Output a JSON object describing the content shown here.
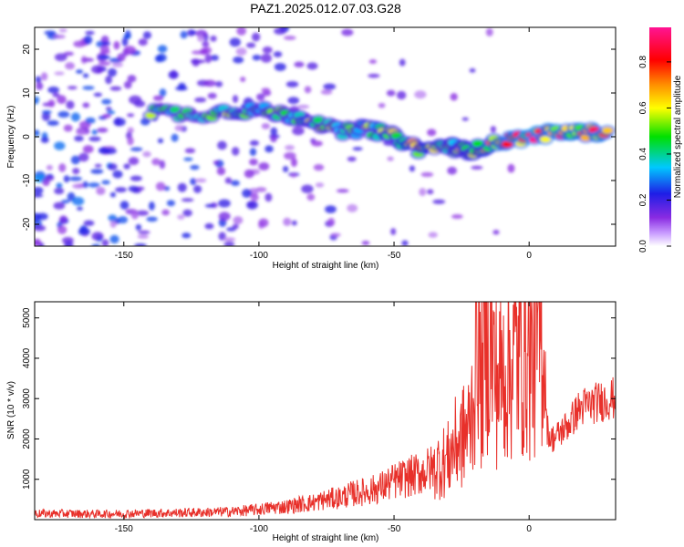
{
  "title": "PAZ1.2025.012.07.03.G28",
  "chart_data": [
    {
      "type": "heatmap",
      "xlabel": "Height of straight line (km)",
      "ylabel": "Frequency (Hz)",
      "xlim": [
        -183,
        32
      ],
      "ylim": [
        -25,
        25
      ],
      "xticks": [
        -150,
        -100,
        -50,
        0
      ],
      "yticks": [
        -20,
        -10,
        0,
        10,
        20
      ],
      "colorbar": {
        "label": "Normalized spectral amplitude",
        "range": [
          0,
          0.95
        ],
        "ticks": [
          "0.0",
          "0.2",
          "0.4",
          "0.6",
          "0.8"
        ],
        "colormap": [
          "#e8d5ff",
          "#8a2be2",
          "#1e1ee6",
          "#00c8ff",
          "#00e000",
          "#ffff00",
          "#ff8c00",
          "#ff0000",
          "#ff1493"
        ]
      },
      "ridge": [
        {
          "x": -140,
          "y": 6,
          "a": 0.55
        },
        {
          "x": -125,
          "y": 5,
          "a": 0.45
        },
        {
          "x": -110,
          "y": 6,
          "a": 0.55
        },
        {
          "x": -100,
          "y": 6,
          "a": 0.5
        },
        {
          "x": -90,
          "y": 5,
          "a": 0.5
        },
        {
          "x": -80,
          "y": 4,
          "a": 0.55
        },
        {
          "x": -70,
          "y": 1,
          "a": 0.5
        },
        {
          "x": -60,
          "y": 2,
          "a": 0.55
        },
        {
          "x": -50,
          "y": 0,
          "a": 0.6
        },
        {
          "x": -40,
          "y": -3,
          "a": 0.65
        },
        {
          "x": -30,
          "y": -2,
          "a": 0.55
        },
        {
          "x": -25,
          "y": -3,
          "a": 0.6
        },
        {
          "x": -20,
          "y": -3,
          "a": 0.6
        },
        {
          "x": -10,
          "y": -1,
          "a": 0.8
        },
        {
          "x": 0,
          "y": 0,
          "a": 0.9
        },
        {
          "x": 10,
          "y": 1,
          "a": 0.85
        },
        {
          "x": 20,
          "y": 1,
          "a": 0.8
        },
        {
          "x": 30,
          "y": 1,
          "a": 0.85
        }
      ]
    },
    {
      "type": "line",
      "xlabel": "Height of straight line (km)",
      "ylabel": "SNR (10 * v/v)",
      "xlim": [
        -183,
        32
      ],
      "ylim": [
        0,
        5400
      ],
      "xticks": [
        -150,
        -100,
        -50,
        0
      ],
      "yticks": [
        1000,
        2000,
        3000,
        4000,
        5000
      ],
      "series": [
        {
          "color": "#e8302a",
          "x": [
            -183,
            -170,
            -160,
            -150,
            -140,
            -130,
            -120,
            -110,
            -100,
            -95,
            -90,
            -85,
            -80,
            -75,
            -70,
            -65,
            -60,
            -55,
            -50,
            -45,
            -40,
            -35,
            -30,
            -28,
            -25,
            -22,
            -20,
            -19,
            -18,
            -16,
            -15,
            -12,
            -10,
            -8,
            -6,
            -5,
            -3,
            -2,
            -1,
            0,
            1,
            2,
            3,
            4,
            5,
            6,
            6.5,
            8,
            10,
            12,
            15,
            18,
            20,
            25,
            30,
            32
          ],
          "y": [
            150,
            150,
            140,
            150,
            160,
            170,
            180,
            200,
            250,
            300,
            320,
            380,
            420,
            500,
            550,
            650,
            700,
            800,
            950,
            1050,
            1150,
            1300,
            1500,
            1800,
            2000,
            2300,
            3500,
            5400,
            3200,
            4300,
            4600,
            3400,
            3600,
            3800,
            3900,
            4200,
            4000,
            4100,
            4200,
            4000,
            3900,
            4100,
            4300,
            4500,
            4500,
            3800,
            2300,
            2000,
            2050,
            2200,
            2400,
            2700,
            2800,
            2900,
            3000,
            3000
          ]
        }
      ]
    }
  ]
}
